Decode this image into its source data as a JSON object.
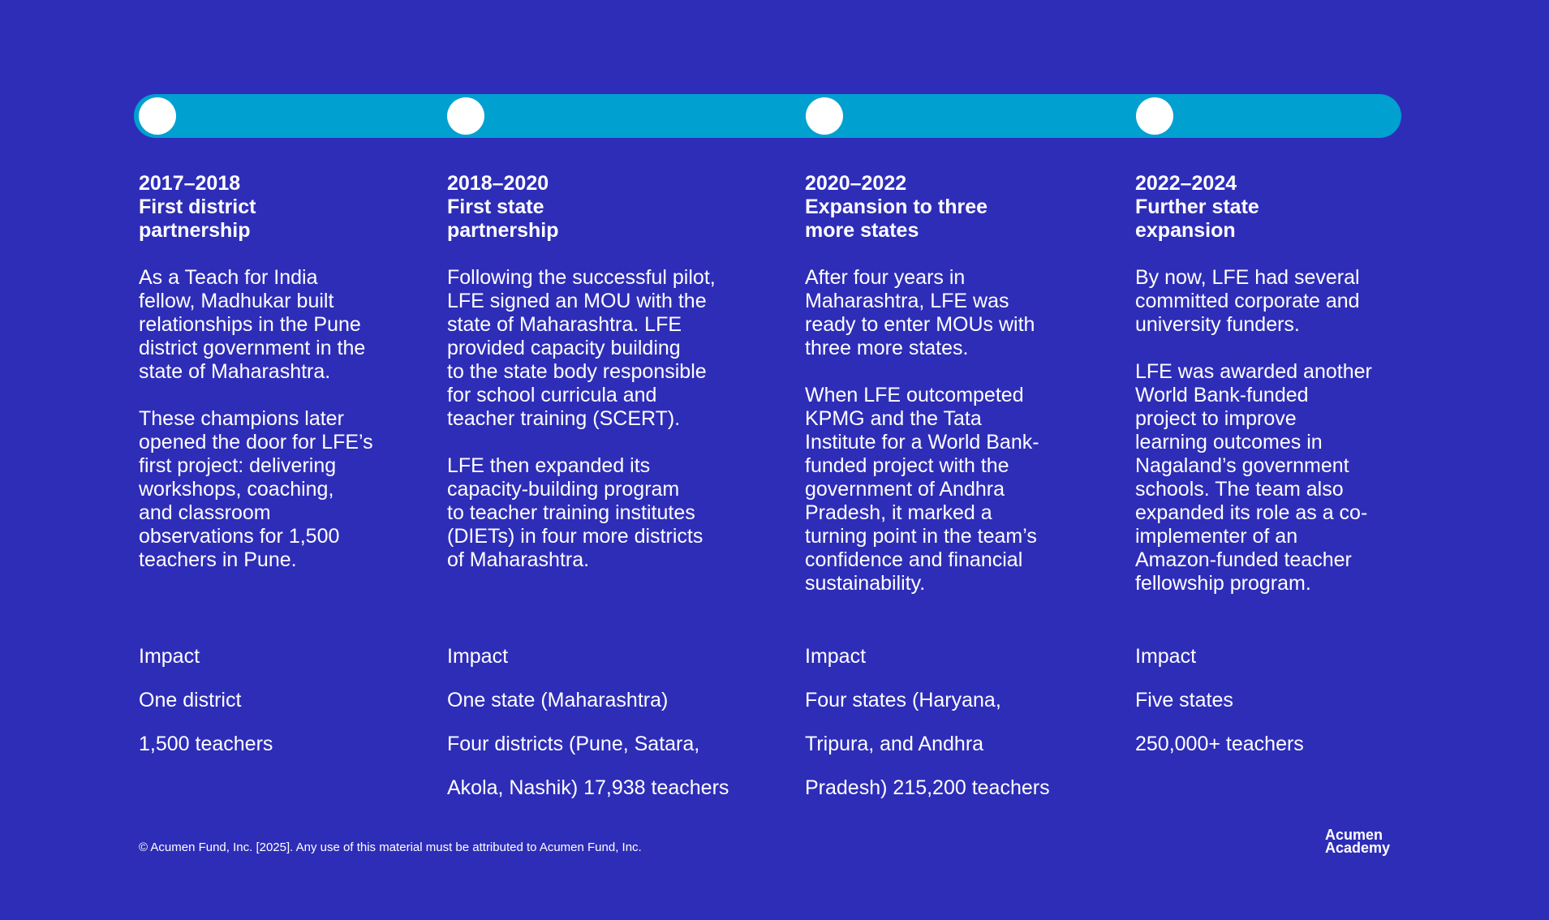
{
  "timeline": {
    "stages": [
      {
        "years": "2017–2018",
        "heading_lines": [
          "First district",
          "partnership"
        ],
        "paragraphs": [
          [
            "As a Teach for India",
            "fellow, Madhukar built",
            "relationships in the Pune",
            "district government in the",
            "state of Maharashtra."
          ],
          [
            "These champions later",
            "opened the door for LFE’s",
            "first project: delivering",
            "workshops, coaching,",
            "and classroom",
            "observations for 1,500",
            "teachers in Pune."
          ]
        ],
        "impact_title": "Impact",
        "impact_lines": [
          "One district",
          "1,500 teachers"
        ]
      },
      {
        "years": "2018–2020",
        "heading_lines": [
          "First state",
          "partnership"
        ],
        "paragraphs": [
          [
            "Following the successful pilot,",
            "LFE signed an MOU with the",
            "state of Maharashtra. LFE",
            "provided capacity building",
            "to the state body responsible",
            "for school curricula and",
            "teacher training (SCERT)."
          ],
          [
            "LFE then expanded its",
            "capacity-building program",
            "to teacher training institutes",
            "(DIETs) in four more districts",
            "of Maharashtra."
          ]
        ],
        "impact_title": "Impact",
        "impact_lines": [
          "One state (Maharashtra)",
          "Four districts (Pune, Satara,",
          "Akola, Nashik) 17,938 teachers"
        ]
      },
      {
        "years": "2020–2022",
        "heading_lines": [
          "Expansion to three",
          "more states"
        ],
        "paragraphs": [
          [
            "After four years in",
            "Maharashtra, LFE was",
            "ready to enter MOUs with",
            "three more states."
          ],
          [
            "When LFE outcompeted",
            "KPMG and the Tata",
            "Institute for a World Bank-",
            "funded project with the",
            "government of Andhra",
            "Pradesh, it marked a",
            "turning point in the team’s",
            "confidence and financial",
            "sustainability."
          ]
        ],
        "impact_title": "Impact",
        "impact_lines": [
          "Four states (Haryana,",
          "Tripura, and Andhra",
          "Pradesh) 215,200 teachers"
        ]
      },
      {
        "years": "2022–2024",
        "heading_lines": [
          "Further state",
          "expansion"
        ],
        "paragraphs": [
          [
            "By now, LFE had several",
            "committed corporate and",
            "university funders."
          ],
          [
            "LFE was awarded another",
            "World Bank-funded",
            "project to improve",
            "learning outcomes in",
            "Nagaland’s government",
            "schools. The team also",
            "expanded its role as a co-",
            "implementer of an",
            "Amazon-funded teacher",
            "fellowship program."
          ]
        ],
        "impact_title": "Impact",
        "impact_lines": [
          "Five states",
          "250,000+ teachers"
        ]
      }
    ]
  },
  "footer": {
    "copyright": "© Acumen Fund, Inc. [2025]. Any use of this material must be attributed to Acumen Fund, Inc.",
    "logo_lines": [
      "Acumen",
      "Academy"
    ]
  },
  "colors": {
    "background": "#2e2db8",
    "timeline_bar": "#00a0d1",
    "dot": "#ffffff",
    "text": "#ffffff"
  }
}
